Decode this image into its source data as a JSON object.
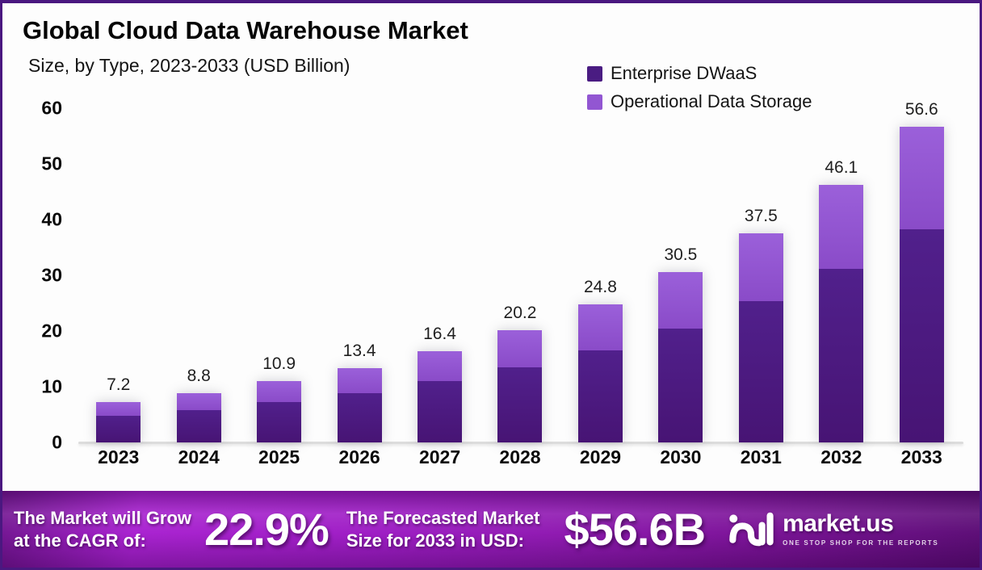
{
  "header": {
    "title": "Global Cloud Data Warehouse Market",
    "subtitle": "Size, by Type, 2023-2033 (USD Billion)"
  },
  "legend": {
    "items": [
      {
        "label": "Enterprise DWaaS",
        "color": "#4a1c82"
      },
      {
        "label": "Operational Data Storage",
        "color": "#9256d2"
      }
    ]
  },
  "chart_data": {
    "type": "bar",
    "stacked": true,
    "title": "Global Cloud Data Warehouse Market",
    "subtitle": "Size, by Type, 2023-2033 (USD Billion)",
    "xlabel": "",
    "ylabel": "USD Billion",
    "categories": [
      "2023",
      "2024",
      "2025",
      "2026",
      "2027",
      "2028",
      "2029",
      "2030",
      "2031",
      "2032",
      "2033"
    ],
    "series": [
      {
        "name": "Enterprise DWaaS",
        "color": "#4a1680",
        "values": [
          4.8,
          5.8,
          7.2,
          8.9,
          11.0,
          13.5,
          16.5,
          20.4,
          25.3,
          31.1,
          38.2
        ]
      },
      {
        "name": "Operational Data Storage",
        "color": "#9053cf",
        "values": [
          2.4,
          3.0,
          3.7,
          4.5,
          5.4,
          6.7,
          8.3,
          10.1,
          12.2,
          15.0,
          18.4
        ]
      }
    ],
    "totals": [
      7.2,
      8.8,
      10.9,
      13.4,
      16.4,
      20.2,
      24.8,
      30.5,
      37.5,
      46.1,
      56.6
    ],
    "total_labels": [
      "7.2",
      "8.8",
      "10.9",
      "13.4",
      "16.4",
      "20.2",
      "24.8",
      "30.5",
      "37.5",
      "46.1",
      "56.6"
    ],
    "yticks": [
      0,
      10,
      20,
      30,
      40,
      50,
      60
    ],
    "ylim": [
      0,
      60
    ],
    "grid": false,
    "legend_position": "top-right"
  },
  "banner": {
    "left_line1": "The Market will Grow",
    "left_line2": "at the CAGR of:",
    "cagr": "22.9%",
    "mid_line1": "The Forecasted Market",
    "mid_line2": "Size for 2033 in USD:",
    "forecast": "$56.6B",
    "logo_text": "market.us",
    "logo_tagline": "ONE STOP SHOP FOR THE REPORTS"
  }
}
